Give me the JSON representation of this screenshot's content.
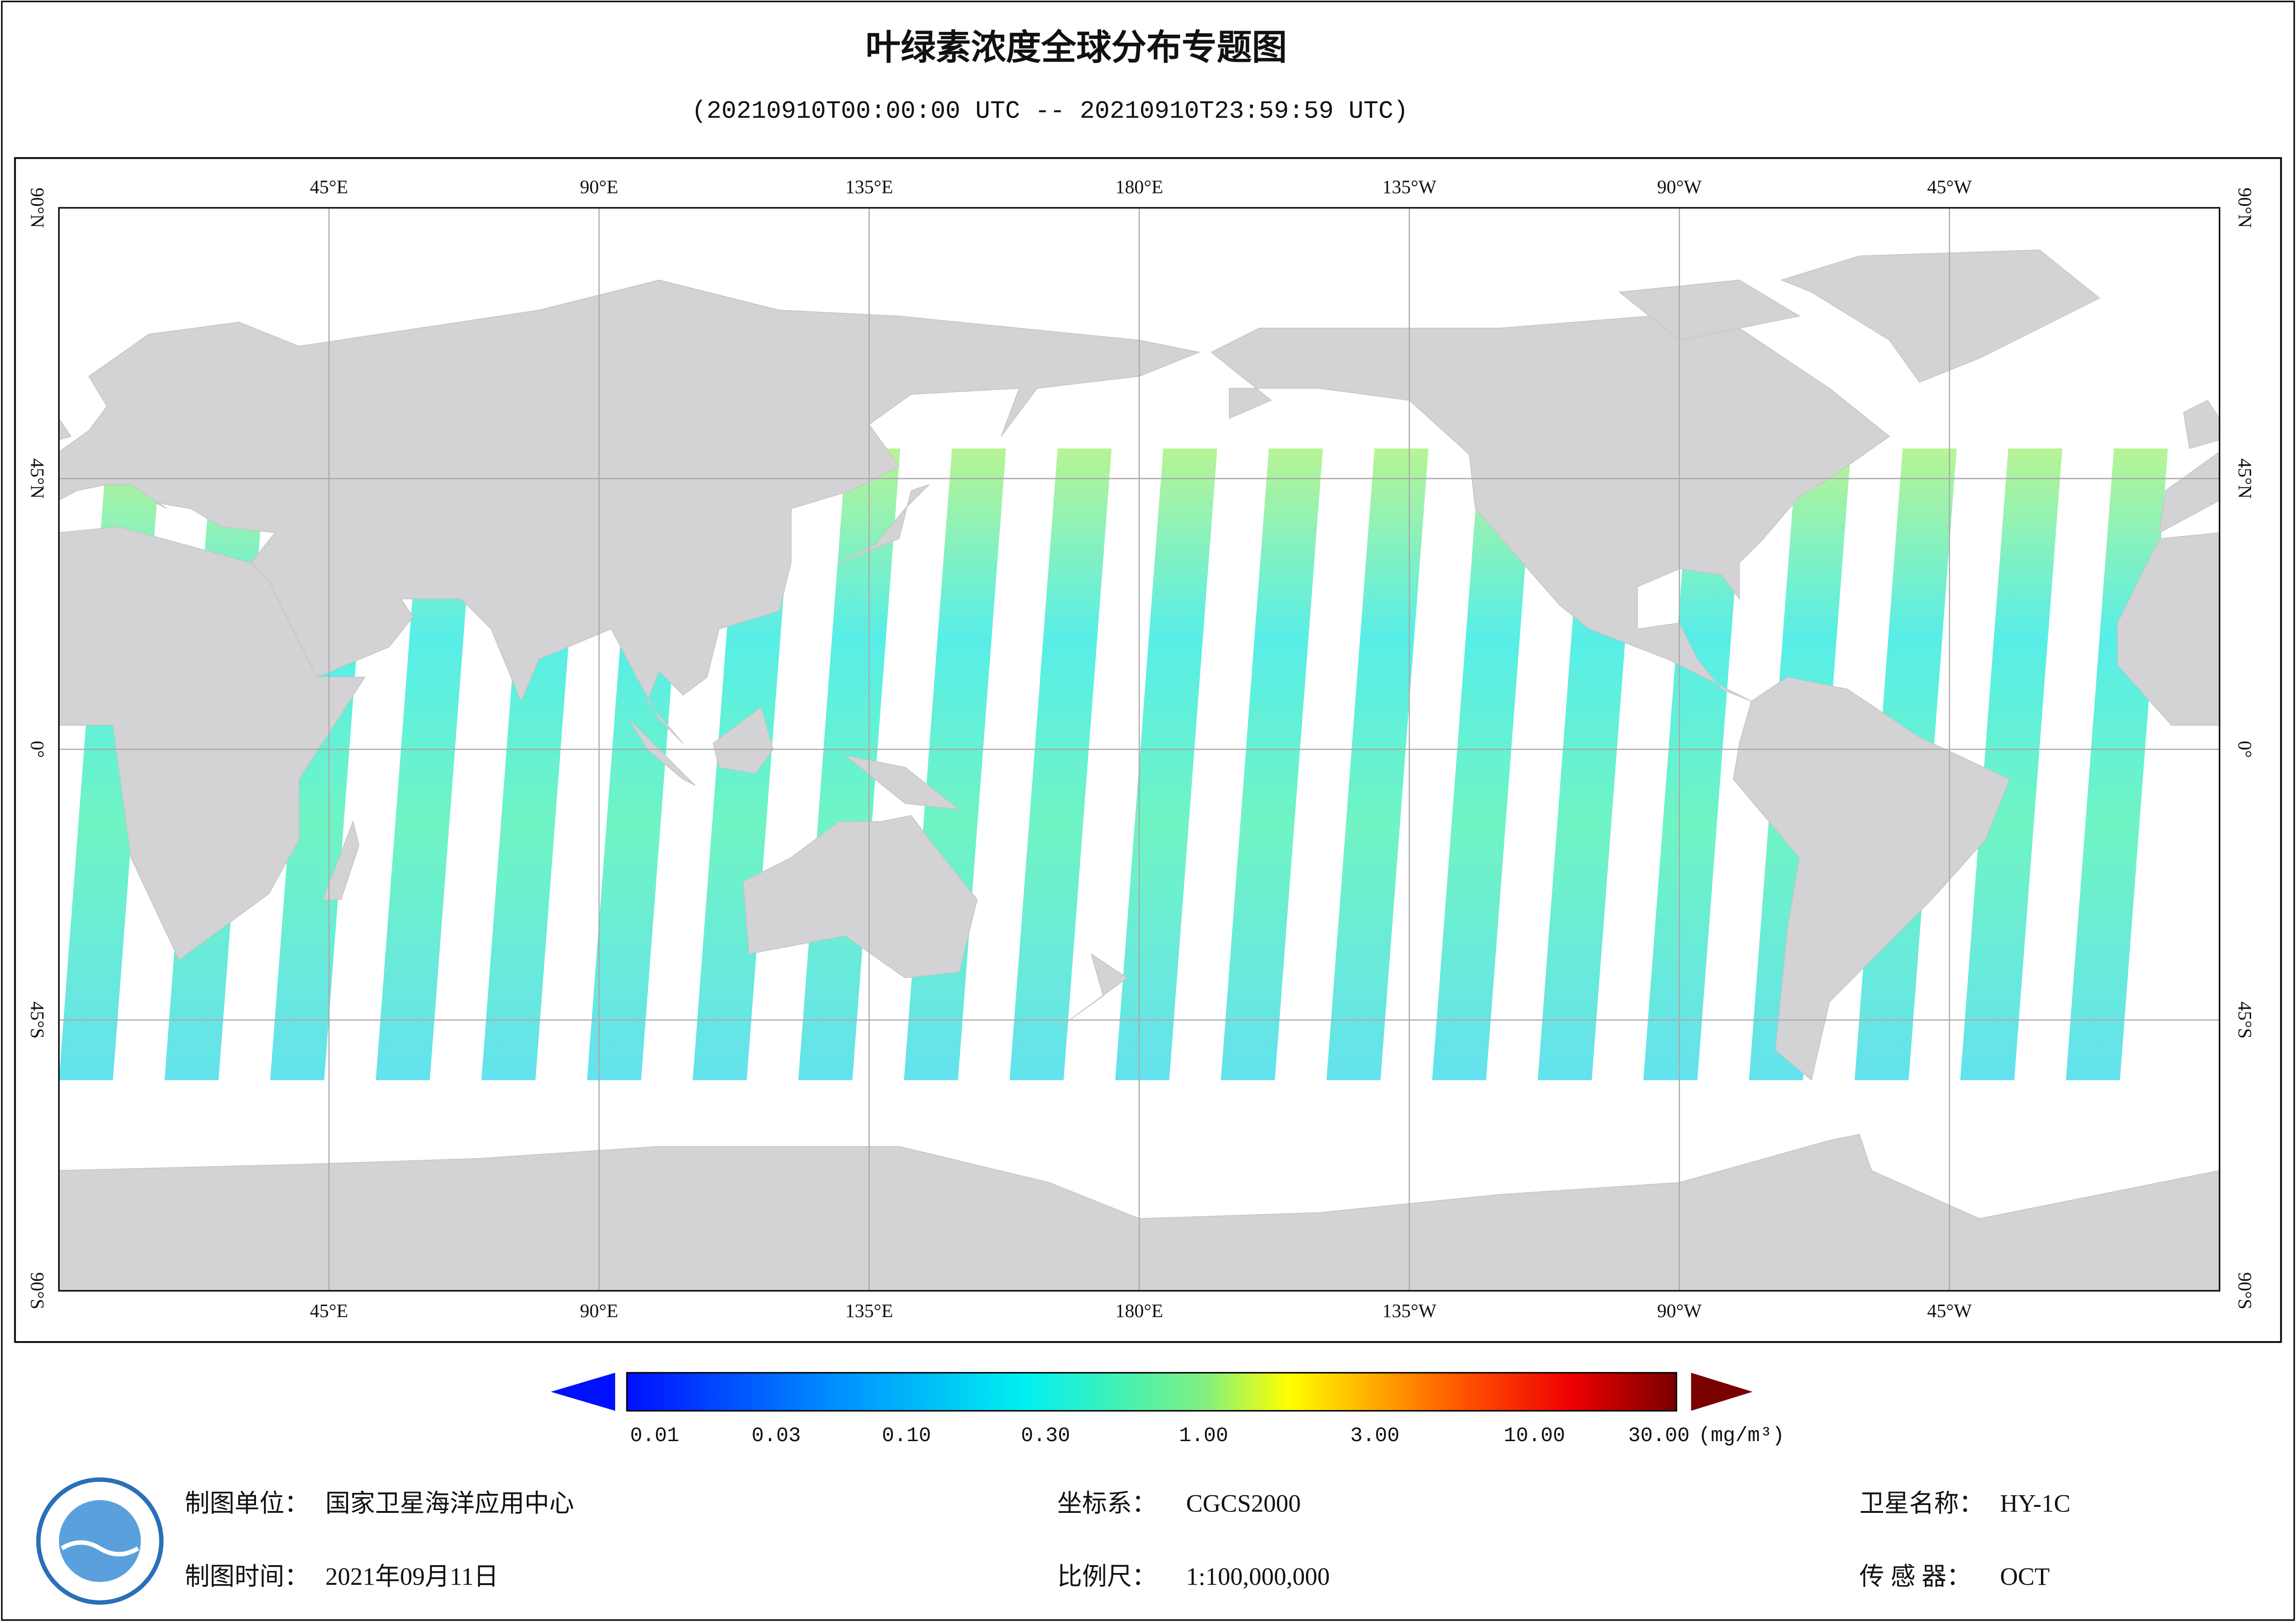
{
  "header": {
    "title": "叶绿素浓度全球分布专题图",
    "subtitle": "(20210910T00:00:00 UTC -- 20210910T23:59:59 UTC)"
  },
  "map": {
    "longitude_labels": [
      "45°E",
      "90°E",
      "135°E",
      "180°E",
      "135°W",
      "90°W",
      "45°W"
    ],
    "latitude_labels": [
      "90°N",
      "45°N",
      "0°",
      "45°S",
      "90°S"
    ]
  },
  "colorbar": {
    "labels": [
      "0.01",
      "0.03",
      "0.10",
      "0.30",
      "1.00",
      "3.00",
      "10.00",
      "30.00"
    ],
    "unit": "(mg/m³)"
  },
  "footer": {
    "unit": {
      "label": "制图单位：",
      "value": "国家卫星海洋应用中心"
    },
    "date": {
      "label": "制图时间：",
      "value": "2021年09月11日"
    },
    "crs": {
      "label": "坐标系：",
      "value": "CGCS2000"
    },
    "scale": {
      "label": "比例尺：",
      "value": "1:100,000,000"
    },
    "satellite": {
      "label": "卫星名称：",
      "value": "HY-1C"
    },
    "sensor": {
      "label": "传 感 器：",
      "value": "OCT"
    }
  }
}
